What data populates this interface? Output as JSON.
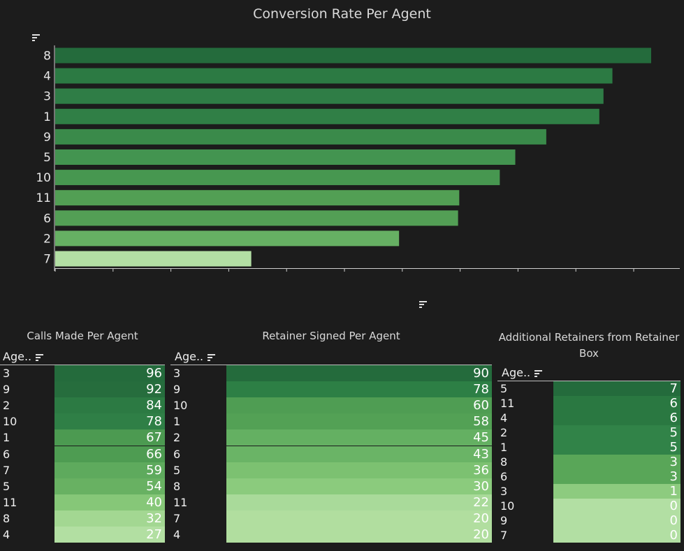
{
  "chart_data": [
    {
      "type": "bar",
      "orientation": "horizontal",
      "title": "Conversion Rate Per Agent",
      "categories": [
        "8",
        "4",
        "3",
        "1",
        "9",
        "5",
        "10",
        "11",
        "6",
        "2",
        "7"
      ],
      "values": [
        1.0,
        0.935,
        0.92,
        0.913,
        0.824,
        0.772,
        0.746,
        0.678,
        0.676,
        0.577,
        0.329
      ],
      "value_scale": "relative (no axis labels shown)",
      "colors": [
        "#246b3c",
        "#2c7a43",
        "#2f7d46",
        "#307f46",
        "#3a8a4a",
        "#439450",
        "#479750",
        "#529f54",
        "#539f55",
        "#66b063",
        "#b3dfa4"
      ]
    },
    {
      "type": "table",
      "title": "Calls Made Per Agent",
      "column_header": "Age..",
      "categories": [
        "3",
        "9",
        "2",
        "10",
        "1",
        "6",
        "7",
        "5",
        "11",
        "8",
        "4"
      ],
      "values": [
        96,
        92,
        84,
        78,
        67,
        66,
        59,
        54,
        40,
        32,
        27
      ],
      "colors": [
        "#246b3c",
        "#266d3d",
        "#2c7a43",
        "#2f7f46",
        "#4c9a51",
        "#4e9c52",
        "#5eaa5d",
        "#68b162",
        "#86c778",
        "#a3d792",
        "#b2dfa2"
      ]
    },
    {
      "type": "table",
      "title": "Retainer Signed Per Agent",
      "column_header": "Age..",
      "categories": [
        "3",
        "9",
        "10",
        "1",
        "2",
        "6",
        "5",
        "8",
        "11",
        "7",
        "4"
      ],
      "values": [
        90,
        78,
        60,
        58,
        45,
        43,
        36,
        30,
        22,
        20,
        20
      ],
      "colors": [
        "#246b3c",
        "#2d7f45",
        "#4f9d53",
        "#53a155",
        "#64b062",
        "#6ab466",
        "#7cc171",
        "#8bcb7d",
        "#a9da9a",
        "#b1de9f",
        "#b1de9f"
      ]
    },
    {
      "type": "table",
      "title": "Additional Retainers from Retainer Box",
      "column_header": "Age..",
      "categories": [
        "5",
        "11",
        "4",
        "2",
        "1",
        "8",
        "6",
        "3",
        "10",
        "9",
        "7"
      ],
      "values": [
        7,
        6,
        6,
        5,
        5,
        3,
        3,
        1,
        0,
        0,
        0
      ],
      "colors": [
        "#246b3c",
        "#2a7841",
        "#2a7841",
        "#318348",
        "#318348",
        "#59a658",
        "#59a658",
        "#8dcb7f",
        "#b2dfa3",
        "#b2dfa3",
        "#b2dfa3"
      ]
    }
  ]
}
